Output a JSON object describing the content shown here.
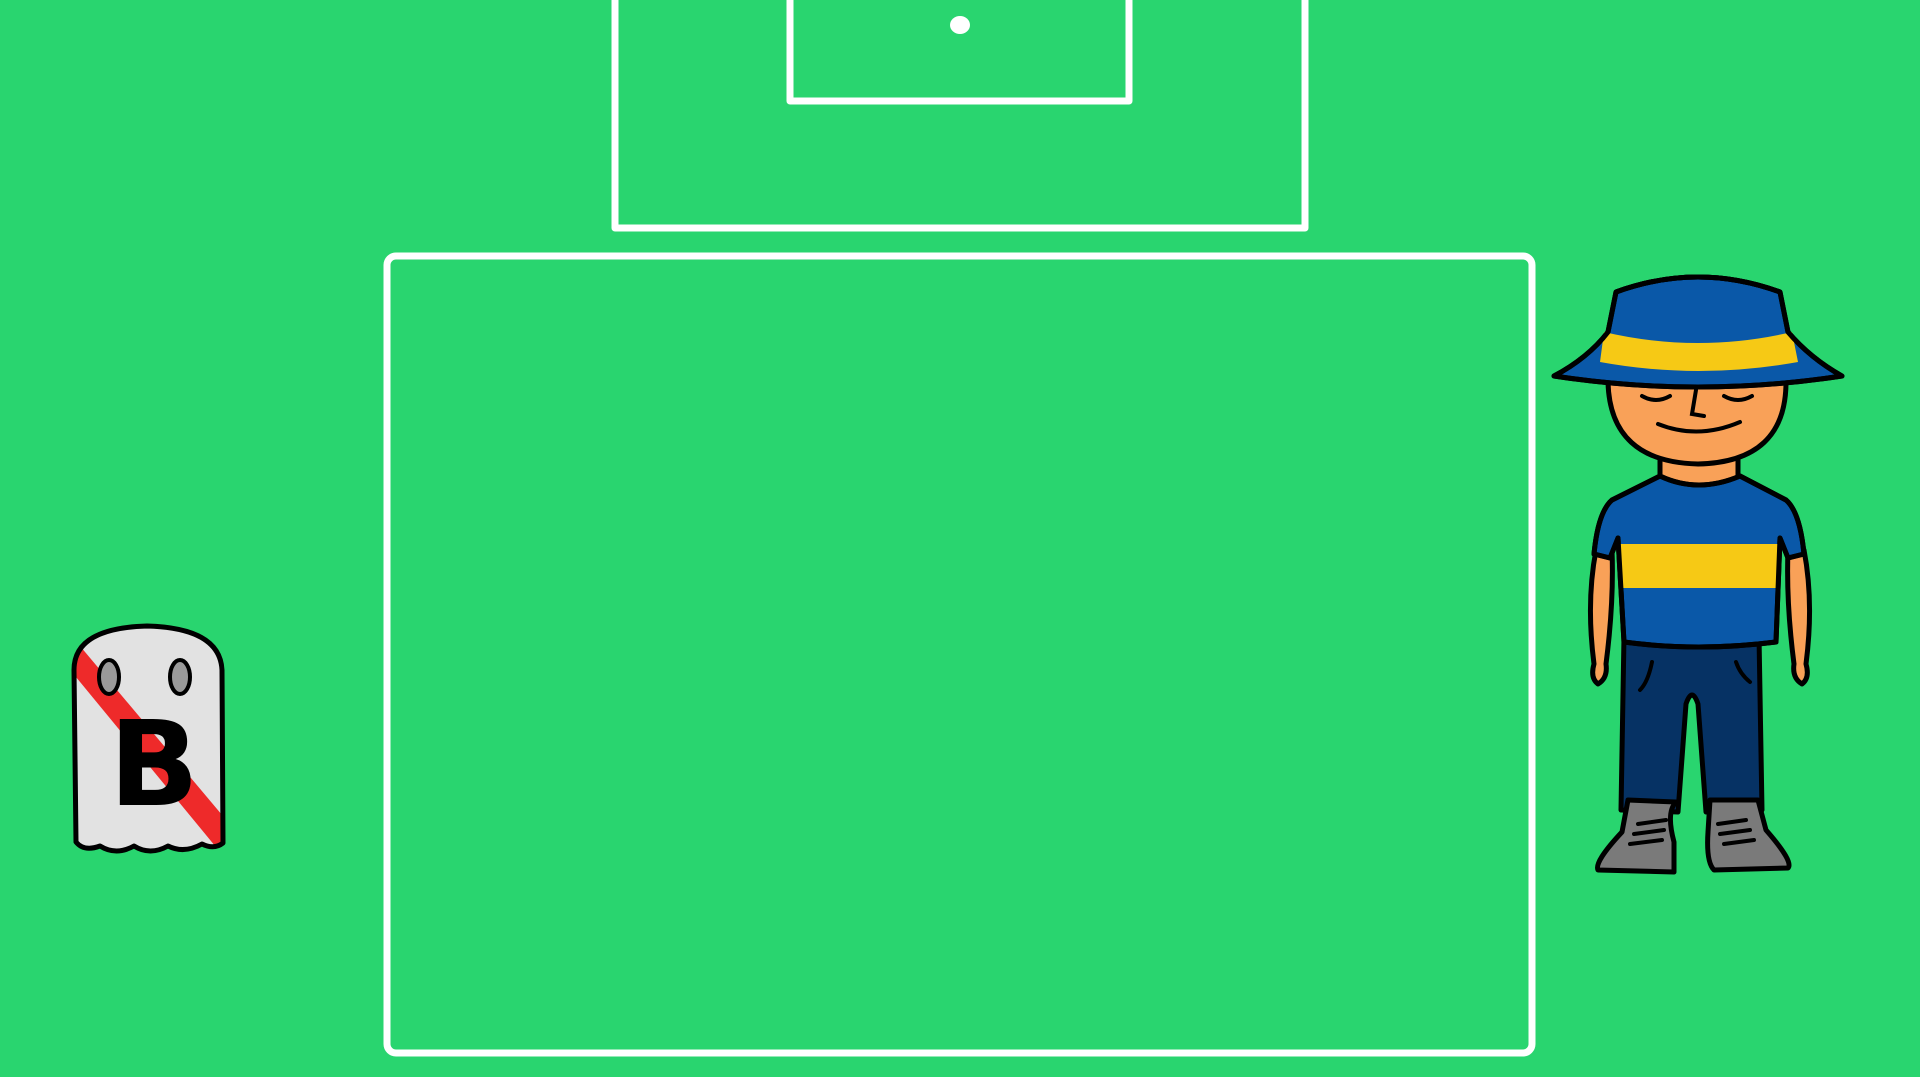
{
  "scene": {
    "type": "soccer-pitch-game-scene",
    "colors": {
      "grass": "#29d56f",
      "lines": "#ffffff",
      "bottom_border": "#ffffff"
    }
  },
  "pitch_markings": {
    "items": [
      "goal-area",
      "penalty-spot",
      "penalty-area",
      "playing-zone"
    ]
  },
  "characters": {
    "ghost": {
      "name": "ghost-b",
      "emblem_letter": "B",
      "colors": {
        "body": "#e2e2e2",
        "sash": "#ee2a2a",
        "eyes": "#9a9a9a",
        "outline": "#000000"
      }
    },
    "player": {
      "name": "fan-player",
      "colors": {
        "hat": "#0a58a8",
        "hat_band": "#f6c915",
        "skin": "#f9a158",
        "shirt": "#0a58a8",
        "shirt_band": "#f6c915",
        "pants": "#063264",
        "shoes_dark": "#7a7a7a",
        "shoes_light": "#dcdcdc",
        "outline": "#000000"
      }
    }
  }
}
